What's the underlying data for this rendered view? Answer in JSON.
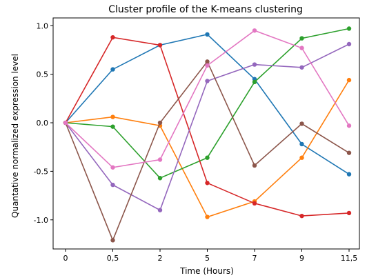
{
  "chart_data": {
    "type": "line",
    "title": "Cluster profile of the K-means clustering",
    "xlabel": "Time (Hours)",
    "ylabel": "Quantative normalized expression level",
    "categories": [
      "0",
      "0,5",
      "2",
      "5",
      "7",
      "9",
      "11,5"
    ],
    "yticks": [
      "-1.0",
      "-0.5",
      "0.0",
      "0.5",
      "1.0"
    ],
    "ytick_values": [
      -1.0,
      -0.5,
      0.0,
      0.5,
      1.0
    ],
    "ylim": [
      -1.3,
      1.08
    ],
    "grid": false,
    "series": [
      {
        "color": "#1f77b4",
        "values": [
          0,
          0.55,
          0.8,
          0.91,
          0.45,
          -0.22,
          -0.53
        ]
      },
      {
        "color": "#ff7f0e",
        "values": [
          0,
          0.06,
          -0.03,
          -0.97,
          -0.81,
          -0.36,
          0.44
        ]
      },
      {
        "color": "#2ca02c",
        "values": [
          0,
          -0.04,
          -0.57,
          -0.36,
          0.42,
          0.87,
          0.97
        ]
      },
      {
        "color": "#d62728",
        "values": [
          0,
          0.88,
          0.8,
          -0.62,
          -0.83,
          -0.96,
          -0.93
        ]
      },
      {
        "color": "#9467bd",
        "values": [
          0,
          -0.64,
          -0.9,
          0.43,
          0.6,
          0.57,
          0.81
        ]
      },
      {
        "color": "#8c564b",
        "values": [
          0,
          -1.21,
          0.0,
          0.63,
          -0.44,
          -0.01,
          -0.31
        ]
      },
      {
        "color": "#e377c2",
        "values": [
          0,
          -0.46,
          -0.38,
          0.59,
          0.95,
          0.77,
          -0.03
        ]
      }
    ]
  }
}
